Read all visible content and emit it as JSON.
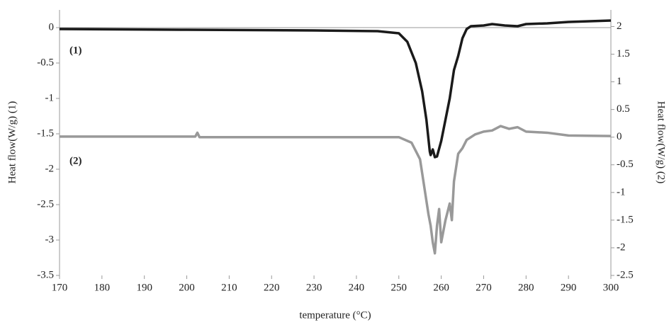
{
  "chart_data": {
    "type": "line",
    "xlabel": "temperature (°C)",
    "ylabel": "Heat flow(W/g) (1)",
    "y2label": "Heat flow(W/g) (2)",
    "annotations": [
      "(1)",
      "(2)"
    ],
    "xlim": [
      170,
      300
    ],
    "xticks": [
      170,
      180,
      190,
      200,
      210,
      220,
      230,
      240,
      250,
      260,
      270,
      280,
      290,
      300
    ],
    "ylim": [
      -3.5,
      0.25
    ],
    "yticks": [
      0,
      -0.5,
      -1,
      -1.5,
      -2,
      -2.5,
      -3,
      -3.5
    ],
    "y2lim": [
      -2.5,
      2.3
    ],
    "y2ticks": [
      2,
      1.5,
      1,
      0.5,
      0,
      -0.5,
      -1,
      -1.5,
      -2,
      -2.5
    ],
    "series": [
      {
        "color": "#1a1a1a",
        "x": [
          170,
          200,
          230,
          245,
          250,
          252,
          254,
          255.5,
          256.5,
          257.3,
          257.5,
          258,
          258.5,
          259,
          260,
          261,
          262,
          263,
          264,
          265,
          266,
          267,
          270,
          272,
          275,
          278,
          280,
          285,
          290,
          295,
          300
        ],
        "values": [
          -0.02,
          -0.03,
          -0.04,
          -0.05,
          -0.08,
          -0.2,
          -0.5,
          -0.9,
          -1.3,
          -1.75,
          -1.8,
          -1.72,
          -1.83,
          -1.82,
          -1.6,
          -1.3,
          -1.0,
          -0.6,
          -0.4,
          -0.15,
          -0.02,
          0.02,
          0.03,
          0.05,
          0.03,
          0.02,
          0.05,
          0.06,
          0.08,
          0.09,
          0.1
        ]
      },
      {
        "color": "#999999",
        "axis": "y2",
        "x": [
          170,
          202,
          202.5,
          203,
          230,
          250,
          253,
          255,
          256,
          257,
          257.5,
          258,
          258.5,
          259,
          259.5,
          260,
          261,
          262,
          262.5,
          263,
          264,
          265,
          266,
          268,
          270,
          272,
          274,
          276,
          278,
          280,
          285,
          290,
          300
        ],
        "values": [
          0.01,
          0.01,
          0.08,
          0,
          0,
          0,
          -0.1,
          -0.4,
          -0.9,
          -1.4,
          -1.6,
          -1.9,
          -2.1,
          -1.6,
          -1.3,
          -1.9,
          -1.5,
          -1.2,
          -1.5,
          -0.8,
          -0.3,
          -0.2,
          -0.05,
          0.05,
          0.1,
          0.12,
          0.2,
          0.15,
          0.18,
          0.1,
          0.08,
          0.03,
          0.02
        ]
      }
    ]
  }
}
